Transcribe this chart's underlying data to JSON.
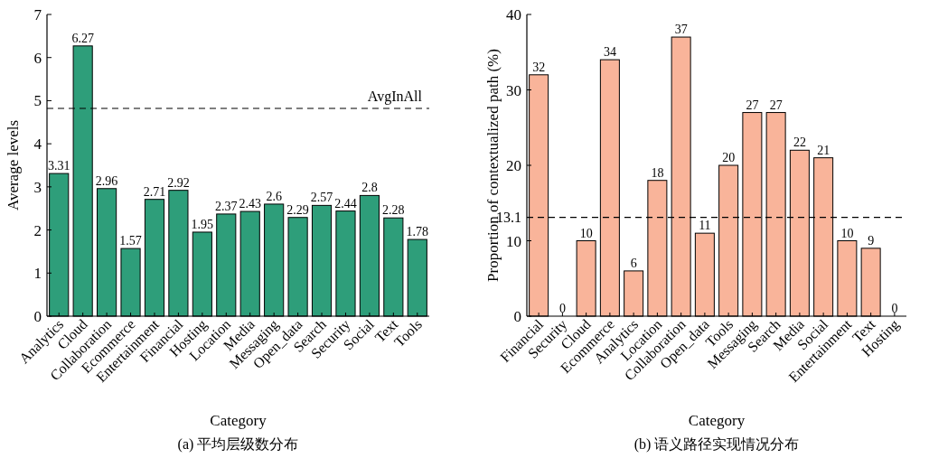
{
  "chart_data": [
    {
      "type": "bar",
      "title": "(a) 平均层级数分布",
      "xlabel": "Category",
      "ylabel": "Average levels",
      "color": "#2e9e7a",
      "ylim": [
        0,
        7
      ],
      "yticks": [
        0,
        1,
        2,
        3,
        4,
        5,
        6,
        7
      ],
      "data_labels": true,
      "categories": [
        "Analytics",
        "Cloud",
        "Collaboration",
        "Ecommerce",
        "Entertainment",
        "Financial",
        "Hosting",
        "Location",
        "Media",
        "Messaging",
        "Open_data",
        "Search",
        "Security",
        "Social",
        "Text",
        "Tools"
      ],
      "values": [
        3.31,
        6.27,
        2.96,
        1.57,
        2.71,
        2.92,
        1.95,
        2.37,
        2.43,
        2.6,
        2.29,
        2.57,
        2.44,
        2.8,
        2.28,
        1.78
      ],
      "ref_lines": [
        {
          "axis": "y",
          "value": 4.82,
          "label": "AvgInAll",
          "line_style": "dashed"
        }
      ]
    },
    {
      "type": "bar",
      "title": "(b) 语义路径实现情况分布",
      "xlabel": "Category",
      "ylabel": "Proportion of contextualized path (%)",
      "color": "#f9b49a",
      "ylim": [
        0,
        40
      ],
      "yticks": [
        0,
        10,
        20,
        30,
        40
      ],
      "data_labels": true,
      "categories": [
        "Financial",
        "Security",
        "Cloud",
        "Ecommerce",
        "Analytics",
        "Location",
        "Collaboration",
        "Open_data",
        "Tools",
        "Messaging",
        "Search",
        "Media",
        "Social",
        "Entertainment",
        "Text",
        "Hosting"
      ],
      "values": [
        32,
        0,
        10,
        34,
        6,
        18,
        37,
        11,
        20,
        27,
        27,
        22,
        21,
        10,
        9,
        0
      ],
      "ref_lines": [
        {
          "axis": "y",
          "value": 13.1,
          "label": "13.1",
          "line_style": "dashed"
        }
      ]
    }
  ]
}
